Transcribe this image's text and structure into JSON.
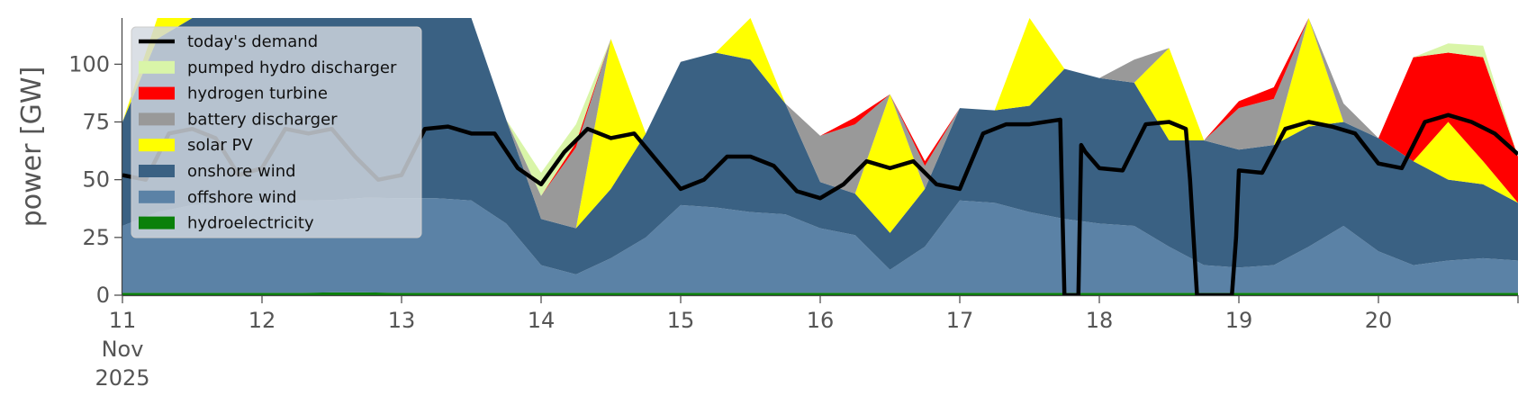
{
  "chart_data": {
    "type": "area",
    "title": "",
    "xlabel": "",
    "ylabel": "power [GW]",
    "ylim": [
      0,
      120
    ],
    "xlim": [
      "2025-11-11T00:00",
      "2025-11-20T24:00"
    ],
    "yticks": [
      0,
      25,
      50,
      75,
      100
    ],
    "xticks": [
      "11",
      "12",
      "13",
      "14",
      "15",
      "16",
      "17",
      "18",
      "19",
      "20"
    ],
    "xtick_first_sub": [
      "Nov",
      "2025"
    ],
    "grid": false,
    "legend_position": "top-left",
    "legend": [
      "today's demand",
      "pumped hydro discharger",
      "hydrogen turbine",
      "battery discharger",
      "solar PV",
      "onshore wind",
      "offshore wind",
      "hydroelectricity"
    ],
    "stack_order": [
      "hydroelectricity",
      "offshore wind",
      "onshore wind",
      "solar PV",
      "battery discharger",
      "hydrogen turbine",
      "pumped hydro discharger"
    ],
    "colors": {
      "today's demand": "#000000",
      "pumped hydro discharger": "#d9f5a8",
      "hydrogen turbine": "#ff0000",
      "battery discharger": "#999999",
      "solar PV": "#ffff00",
      "onshore wind": "#3a6183",
      "offshore wind": "#5b82a6",
      "hydroelectricity": "#0a800a"
    },
    "x": [
      11.0,
      11.25,
      11.5,
      11.75,
      12.0,
      12.25,
      12.5,
      12.75,
      13.0,
      13.25,
      13.5,
      13.75,
      14.0,
      14.25,
      14.5,
      14.75,
      15.0,
      15.25,
      15.5,
      15.75,
      16.0,
      16.25,
      16.5,
      16.75,
      17.0,
      17.25,
      17.5,
      17.75,
      18.0,
      18.25,
      18.5,
      18.75,
      19.0,
      19.25,
      19.5,
      19.75,
      20.0,
      20.25,
      20.5,
      20.75,
      21.0
    ],
    "series": [
      {
        "name": "hydroelectricity",
        "values": [
          1,
          1,
          1,
          1,
          1,
          1,
          1.2,
          1.2,
          1,
          1,
          1,
          1,
          1,
          1,
          1,
          1,
          1,
          1,
          1,
          1,
          1,
          1,
          1,
          1,
          1,
          1,
          1,
          1,
          1,
          1,
          1,
          1,
          1,
          1,
          1,
          1,
          1,
          1,
          1,
          1,
          1
        ]
      },
      {
        "name": "offshore wind",
        "values": [
          29,
          35,
          38,
          39,
          40,
          40,
          40,
          41,
          41,
          41,
          40,
          30,
          12,
          8,
          15,
          24,
          38,
          37,
          35,
          34,
          28,
          25,
          10,
          20,
          40,
          39,
          35,
          32,
          30,
          29,
          20,
          12,
          11,
          12,
          20,
          29,
          18,
          12,
          14,
          15,
          14
        ]
      },
      {
        "name": "onshore wind",
        "values": [
          45,
          75,
          100,
          110,
          110,
          110,
          110,
          110,
          110,
          110,
          85,
          45,
          20,
          20,
          30,
          45,
          62,
          67,
          66,
          48,
          20,
          18,
          16,
          25,
          40,
          40,
          46,
          65,
          63,
          62,
          46,
          54,
          51,
          52,
          52,
          45,
          49,
          45,
          35,
          32,
          25
        ]
      },
      {
        "name": "solar PV",
        "values": [
          0,
          10,
          40,
          10,
          0,
          10,
          45,
          10,
          0,
          0,
          0,
          0,
          0,
          0,
          65,
          0,
          0,
          0,
          22,
          0,
          0,
          0,
          60,
          0,
          0,
          0,
          45,
          0,
          0,
          0,
          40,
          0,
          0,
          0,
          50,
          0,
          0,
          0,
          25,
          10,
          0
        ]
      },
      {
        "name": "battery discharger",
        "values": [
          0,
          0,
          0,
          0,
          0,
          0,
          0,
          0,
          0,
          0,
          0,
          0,
          10,
          35,
          0,
          0,
          0,
          0,
          0,
          0,
          20,
          30,
          0,
          10,
          0,
          0,
          0,
          0,
          0,
          10,
          0,
          0,
          18,
          20,
          2,
          8,
          0,
          0,
          0,
          0,
          0
        ]
      },
      {
        "name": "hydrogen turbine",
        "values": [
          0,
          0,
          0,
          0,
          0,
          0,
          0,
          0,
          0,
          0,
          0,
          0,
          0,
          2,
          0,
          0,
          0,
          0,
          0,
          0,
          0,
          3,
          0,
          2,
          0,
          0,
          0,
          0,
          0,
          0,
          0,
          0,
          3,
          5,
          0,
          0,
          0,
          45,
          30,
          45,
          20
        ]
      },
      {
        "name": "pumped hydro discharger",
        "values": [
          0,
          0,
          0,
          0,
          0,
          0,
          0,
          0,
          0,
          0,
          0,
          0,
          10,
          8,
          0,
          0,
          0,
          0,
          0,
          0,
          0,
          0,
          0,
          0,
          0,
          0,
          0,
          0,
          0,
          0,
          0,
          0,
          0,
          0,
          0,
          0,
          0,
          0,
          4,
          5,
          0
        ]
      }
    ],
    "demand": {
      "name": "today's demand",
      "x": [
        11.0,
        11.167,
        11.333,
        11.5,
        11.667,
        11.833,
        12.0,
        12.167,
        12.333,
        12.5,
        12.667,
        12.833,
        13.0,
        13.167,
        13.333,
        13.5,
        13.667,
        13.833,
        14.0,
        14.167,
        14.333,
        14.5,
        14.667,
        14.833,
        15.0,
        15.167,
        15.333,
        15.5,
        15.667,
        15.833,
        16.0,
        16.167,
        16.333,
        16.5,
        16.667,
        16.833,
        17.0,
        17.167,
        17.333,
        17.5,
        17.72,
        17.73,
        17.75,
        17.85,
        17.87,
        17.9,
        18.0,
        18.167,
        18.333,
        18.5,
        18.62,
        18.65,
        18.7,
        18.95,
        18.98,
        19.0,
        19.167,
        19.333,
        19.5,
        19.667,
        19.833,
        20.0,
        20.167,
        20.333,
        20.5,
        20.667,
        20.833,
        21.0
      ],
      "values": [
        52,
        50,
        70,
        72,
        68,
        52,
        55,
        72,
        70,
        72,
        60,
        50,
        52,
        72,
        73,
        70,
        70,
        55,
        48,
        62,
        72,
        68,
        70,
        58,
        46,
        50,
        60,
        60,
        56,
        45,
        42,
        48,
        58,
        55,
        58,
        48,
        46,
        70,
        74,
        74,
        76,
        50,
        0,
        0,
        65,
        62,
        55,
        54,
        74,
        75,
        72,
        50,
        0,
        0,
        25,
        54,
        53,
        72,
        75,
        73,
        70,
        57,
        55,
        75,
        78,
        75,
        70,
        61
      ]
    }
  }
}
